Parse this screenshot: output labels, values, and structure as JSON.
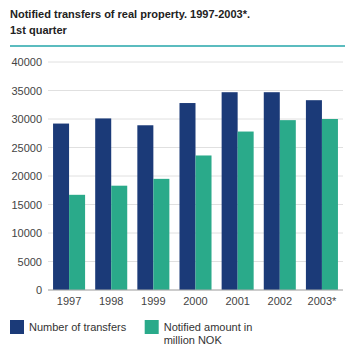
{
  "chart_data": {
    "type": "bar",
    "title": "Notified transfers of real property. 1997-2003*.",
    "subtitle": "1st quarter",
    "categories": [
      "1997",
      "1998",
      "1999",
      "2000",
      "2001",
      "2002",
      "2003*"
    ],
    "series": [
      {
        "name": "Number of transfers",
        "color": "#1b3a78",
        "values": [
          29200,
          30100,
          28900,
          32800,
          34700,
          34700,
          33300
        ]
      },
      {
        "name": "Notified amount in\nmillion NOK",
        "color": "#2aaa8a",
        "values": [
          16700,
          18300,
          19500,
          23600,
          27800,
          29800,
          30000
        ]
      }
    ],
    "ylim": [
      0,
      40000
    ],
    "yticks": [
      0,
      5000,
      10000,
      15000,
      20000,
      25000,
      30000,
      35000,
      40000
    ],
    "grid": true,
    "legend": "bottom"
  }
}
